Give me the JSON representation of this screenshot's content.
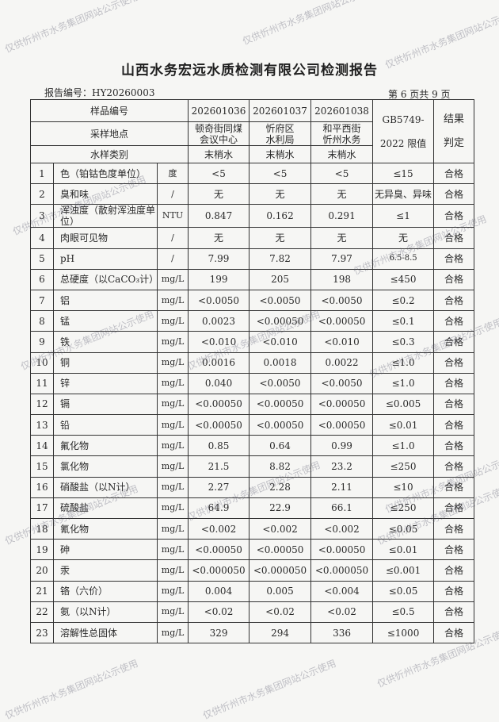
{
  "title": "山西水务宏远水质检测有限公司检测报告",
  "report_no": "报告编号：HY20260003",
  "page_no": "第 6 页共 9 页",
  "header": {
    "sample_no_label": "样品编号",
    "location_label": "采样地点",
    "type_label": "水样类别",
    "limit_label_1": "GB5749-",
    "limit_label_2": "2022 限值",
    "result_label_1": "结果",
    "result_label_2": "判定",
    "samples": [
      {
        "no": "202601036",
        "loc1": "顿奇街同煤",
        "loc2": "会议中心",
        "type": "末梢水"
      },
      {
        "no": "202601037",
        "loc1": "忻府区",
        "loc2": "水利局",
        "type": "末梢水"
      },
      {
        "no": "202601038",
        "loc1": "和平西街",
        "loc2": "忻州水务",
        "type": "末梢水"
      }
    ]
  },
  "rows": [
    [
      "1",
      "色（铂钴色度单位）",
      "度",
      "<5",
      "<5",
      "<5",
      "≤15",
      "合格"
    ],
    [
      "2",
      "臭和味",
      "/",
      "无",
      "无",
      "无",
      "无异臭、异味",
      "合格"
    ],
    [
      "3",
      "浑浊度（散射浑浊度单位）",
      "NTU",
      "0.847",
      "0.162",
      "0.291",
      "≤1",
      "合格"
    ],
    [
      "4",
      "肉眼可见物",
      "/",
      "无",
      "无",
      "无",
      "无",
      "合格"
    ],
    [
      "5",
      "pH",
      "/",
      "7.99",
      "7.82",
      "7.97",
      "6.5-8.5",
      "合格"
    ],
    [
      "6",
      "总硬度（以CaCO₃计）",
      "mg/L",
      "199",
      "205",
      "198",
      "≤450",
      "合格"
    ],
    [
      "7",
      "铝",
      "mg/L",
      "<0.0050",
      "<0.0050",
      "<0.0050",
      "≤0.2",
      "合格"
    ],
    [
      "8",
      "锰",
      "mg/L",
      "0.0023",
      "<0.00050",
      "<0.00050",
      "≤0.1",
      "合格"
    ],
    [
      "9",
      "铁",
      "mg/L",
      "<0.010",
      "<0.010",
      "<0.010",
      "≤0.3",
      "合格"
    ],
    [
      "10",
      "铜",
      "mg/L",
      "0.0016",
      "0.0018",
      "0.0022",
      "≤1.0",
      "合格"
    ],
    [
      "11",
      "锌",
      "mg/L",
      "0.040",
      "<0.0050",
      "<0.0050",
      "≤1.0",
      "合格"
    ],
    [
      "12",
      "镉",
      "mg/L",
      "<0.00050",
      "<0.00050",
      "<0.00050",
      "≤0.005",
      "合格"
    ],
    [
      "13",
      "铅",
      "mg/L",
      "<0.00050",
      "<0.00050",
      "<0.00050",
      "≤0.01",
      "合格"
    ],
    [
      "14",
      "氟化物",
      "mg/L",
      "0.85",
      "0.64",
      "0.99",
      "≤1.0",
      "合格"
    ],
    [
      "15",
      "氯化物",
      "mg/L",
      "21.5",
      "8.82",
      "23.2",
      "≤250",
      "合格"
    ],
    [
      "16",
      "硝酸盐（以N计）",
      "mg/L",
      "2.27",
      "2.28",
      "2.11",
      "≤10",
      "合格"
    ],
    [
      "17",
      "硫酸盐",
      "mg/L",
      "64.9",
      "22.9",
      "66.1",
      "≤250",
      "合格"
    ],
    [
      "18",
      "氰化物",
      "mg/L",
      "<0.002",
      "<0.002",
      "<0.002",
      "≤0.05",
      "合格"
    ],
    [
      "19",
      "砷",
      "mg/L",
      "<0.00050",
      "<0.00050",
      "<0.00050",
      "≤0.01",
      "合格"
    ],
    [
      "20",
      "汞",
      "mg/L",
      "<0.000050",
      "<0.000050",
      "<0.000050",
      "≤0.001",
      "合格"
    ],
    [
      "21",
      "铬（六价）",
      "mg/L",
      "0.004",
      "0.005",
      "<0.004",
      "≤0.05",
      "合格"
    ],
    [
      "22",
      "氨（以N计）",
      "mg/L",
      "<0.02",
      "<0.02",
      "<0.02",
      "≤0.5",
      "合格"
    ],
    [
      "23",
      "溶解性总固体",
      "mg/L",
      "329",
      "294",
      "336",
      "≤1000",
      "合格"
    ]
  ],
  "watermark": "仅供忻州市水务集团网站公示使用"
}
